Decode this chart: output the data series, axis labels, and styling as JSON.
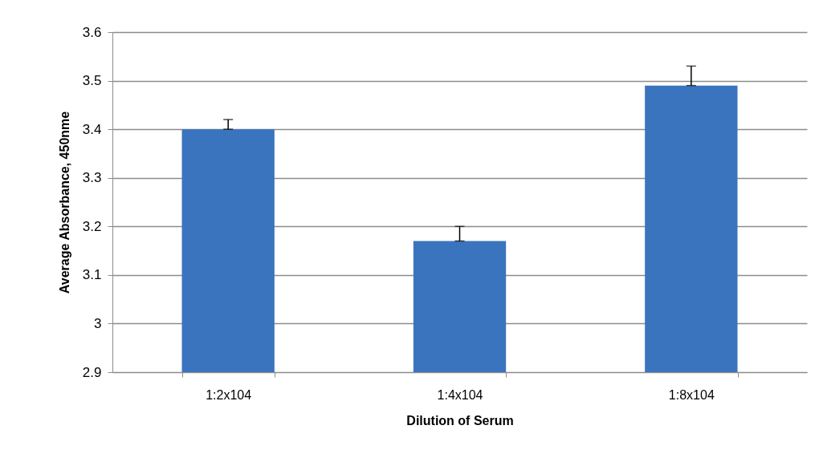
{
  "chart_data": {
    "type": "bar",
    "xlabel": "Dilution of Serum",
    "ylabel": "Average Absorbance, 450nme",
    "categories": [
      "1:2x104",
      "1:4x104",
      "1:8x104"
    ],
    "values": [
      3.4,
      3.17,
      3.49
    ],
    "errors": [
      [
        3.4,
        3.42
      ],
      [
        3.17,
        3.2
      ],
      [
        3.49,
        3.53
      ]
    ],
    "color": "#3a74be",
    "ylim": [
      2.9,
      3.6
    ],
    "yticks": [
      2.9,
      3,
      3.1,
      3.2,
      3.3,
      3.4,
      3.5,
      3.6
    ],
    "grid": "y"
  }
}
